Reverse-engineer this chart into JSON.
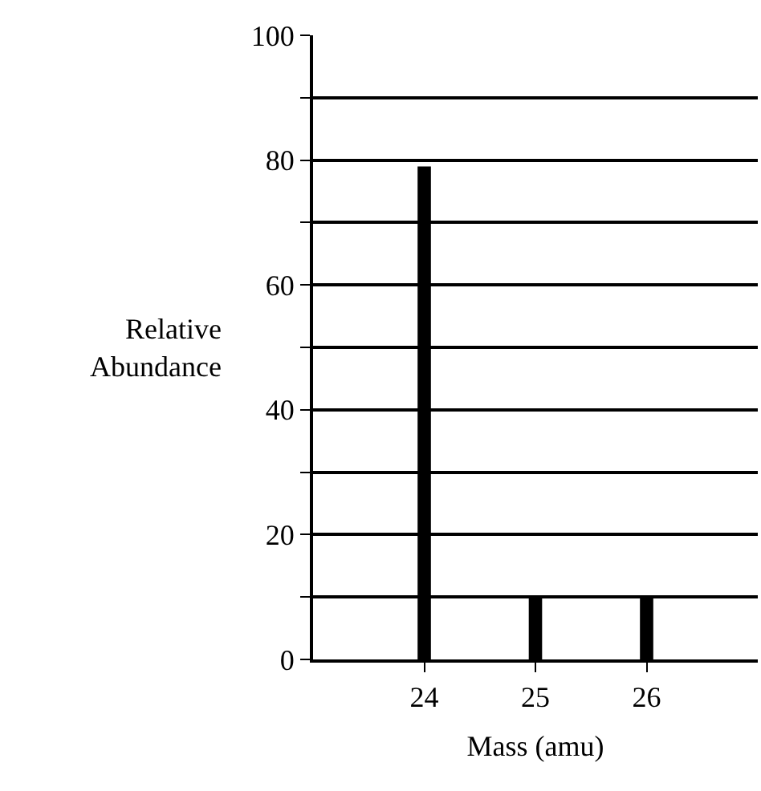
{
  "chart_data": {
    "type": "bar",
    "xlabel": "Mass (amu)",
    "ylabel": "Relative\nAbundance",
    "x": [
      24,
      25,
      26
    ],
    "values": [
      79,
      10,
      10
    ],
    "color": "#000000",
    "xlim": [
      23,
      27
    ],
    "xticks": [
      24,
      25,
      26
    ],
    "ylim": [
      0,
      100
    ],
    "yticks": [
      0,
      {
        "value": 10,
        "label": null
      },
      20,
      {
        "value": 30,
        "label": null
      },
      40,
      {
        "value": 50,
        "label": null
      },
      60,
      {
        "value": 70,
        "label": null
      },
      80,
      {
        "value": 90,
        "label": null
      },
      100
    ],
    "grid": "y"
  }
}
